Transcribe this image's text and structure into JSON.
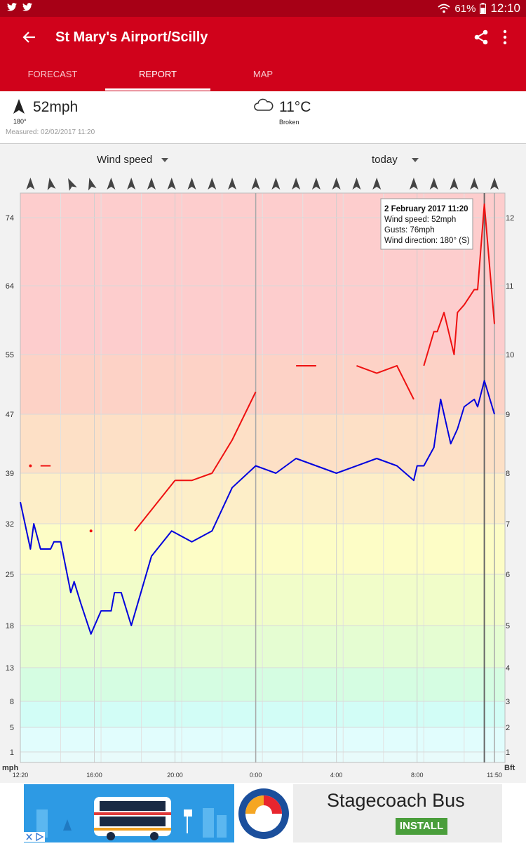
{
  "status": {
    "battery": "61%",
    "time": "12:10"
  },
  "header": {
    "title": "St Mary's Airport/Scilly"
  },
  "tabs": [
    {
      "label": "FORECAST"
    },
    {
      "label": "REPORT"
    },
    {
      "label": "MAP"
    }
  ],
  "summary": {
    "wind": "52mph",
    "wind_direction": "180°",
    "measured": "Measured: 02/02/2017 11:20",
    "temperature": "11°C",
    "condition": "Broken"
  },
  "controls": {
    "metric": "Wind speed",
    "period": "today"
  },
  "tooltip": {
    "title": "2 February 2017 11:20",
    "line1": "Wind speed: 52mph",
    "line2": "Gusts: 76mph",
    "line3": "Wind direction: 180° (S)"
  },
  "ad": {
    "title": "Stagecoach Bus",
    "button": "INSTALL"
  },
  "colors": {
    "wind": "#0000dd",
    "gusts": "#ee1111",
    "header": "#d0021b",
    "bands": [
      "#e8fbfb",
      "#e1fdfd",
      "#d2fdf6",
      "#d5fde2",
      "#e5fdd2",
      "#f1fdc9",
      "#fdfdc6",
      "#fdeec8",
      "#fde0c6",
      "#fdd2c6",
      "#fdcdcd"
    ]
  },
  "chart_data": {
    "type": "line",
    "x_start": "12:20",
    "x_end": "11:50",
    "xlim": [
      0,
      1410
    ],
    "x_ticks": [
      {
        "label": "12:20",
        "x": 0
      },
      {
        "label": "16:00",
        "x": 220
      },
      {
        "label": "20:00",
        "x": 460
      },
      {
        "label": "0:00",
        "x": 700
      },
      {
        "label": "4:00",
        "x": 940
      },
      {
        "label": "8:00",
        "x": 1180
      },
      {
        "label": "11:50",
        "x": 1410
      }
    ],
    "ylabel": "mph",
    "y2label": "Bft",
    "y_ticks": [
      1,
      5,
      8,
      13,
      18,
      25,
      32,
      39,
      47,
      55,
      64,
      74
    ],
    "y2_ticks": [
      {
        "label": "1",
        "mph": 1
      },
      {
        "label": "2",
        "mph": 5
      },
      {
        "label": "3",
        "mph": 8
      },
      {
        "label": "4",
        "mph": 13
      },
      {
        "label": "5",
        "mph": 18
      },
      {
        "label": "6",
        "mph": 25
      },
      {
        "label": "7",
        "mph": 32
      },
      {
        "label": "8",
        "mph": 39
      },
      {
        "label": "9",
        "mph": 47
      },
      {
        "label": "10",
        "mph": 55
      },
      {
        "label": "11",
        "mph": 64
      },
      {
        "label": "12",
        "mph": 74
      }
    ],
    "band_edges": [
      0,
      1,
      5,
      8,
      13,
      18,
      25,
      32,
      39,
      47,
      55,
      64,
      74,
      80
    ],
    "ylim": [
      0,
      80
    ],
    "grid": true,
    "major_x": [
      700,
      1410
    ],
    "arrow_x": [
      30,
      90,
      150,
      210,
      270,
      330,
      390,
      450,
      510,
      570,
      630,
      700,
      760,
      820,
      880,
      940,
      1000,
      1060,
      1170,
      1230,
      1290,
      1350,
      1410
    ],
    "arrow_angle": [
      0,
      -10,
      -25,
      -15,
      0,
      0,
      0,
      0,
      0,
      0,
      0,
      0,
      0,
      0,
      0,
      0,
      0,
      0,
      0,
      0,
      0,
      0,
      0
    ],
    "series": [
      {
        "name": "Wind speed",
        "values": [
          [
            0,
            35
          ],
          [
            30,
            28.5
          ],
          [
            40,
            32
          ],
          [
            60,
            28.5
          ],
          [
            90,
            28.5
          ],
          [
            100,
            29.5
          ],
          [
            120,
            29.5
          ],
          [
            150,
            22.5
          ],
          [
            160,
            24
          ],
          [
            180,
            21
          ],
          [
            210,
            17
          ],
          [
            240,
            20
          ],
          [
            270,
            20
          ],
          [
            280,
            22.5
          ],
          [
            300,
            22.5
          ],
          [
            330,
            18
          ],
          [
            390,
            27.5
          ],
          [
            450,
            31
          ],
          [
            510,
            29.5
          ],
          [
            570,
            31
          ],
          [
            630,
            37
          ],
          [
            700,
            40
          ],
          [
            760,
            39
          ],
          [
            820,
            41
          ],
          [
            940,
            39
          ],
          [
            1060,
            41
          ],
          [
            1120,
            40
          ],
          [
            1170,
            38
          ],
          [
            1180,
            40
          ],
          [
            1200,
            40
          ],
          [
            1230,
            42.5
          ],
          [
            1250,
            49
          ],
          [
            1280,
            43
          ],
          [
            1300,
            45
          ],
          [
            1320,
            48
          ],
          [
            1350,
            49
          ],
          [
            1360,
            48
          ],
          [
            1380,
            51.5
          ],
          [
            1410,
            47
          ]
        ]
      },
      {
        "name": "Gusts",
        "segments": [
          [
            [
              30,
              40
            ],
            [
              30,
              40
            ]
          ],
          [
            [
              60,
              40
            ],
            [
              90,
              40
            ]
          ],
          [
            [
              210,
              31
            ],
            [
              210,
              31
            ]
          ],
          [
            [
              340,
              31
            ],
            [
              460,
              38
            ]
          ],
          [
            [
              460,
              38
            ],
            [
              510,
              38
            ],
            [
              570,
              39
            ],
            [
              630,
              43.5
            ],
            [
              700,
              50
            ]
          ],
          [
            [
              820,
              53.5
            ],
            [
              880,
              53.5
            ]
          ],
          [
            [
              1000,
              53.5
            ],
            [
              1060,
              52.5
            ],
            [
              1120,
              53.5
            ],
            [
              1170,
              49
            ]
          ],
          [
            [
              1200,
              53.5
            ],
            [
              1230,
              58
            ],
            [
              1240,
              58
            ],
            [
              1260,
              60.5
            ],
            [
              1290,
              55
            ],
            [
              1300,
              60.5
            ],
            [
              1320,
              61.5
            ],
            [
              1350,
              63.5
            ],
            [
              1360,
              63.5
            ],
            [
              1380,
              76
            ],
            [
              1410,
              59
            ]
          ]
        ]
      }
    ],
    "highlight_x": 1380
  }
}
